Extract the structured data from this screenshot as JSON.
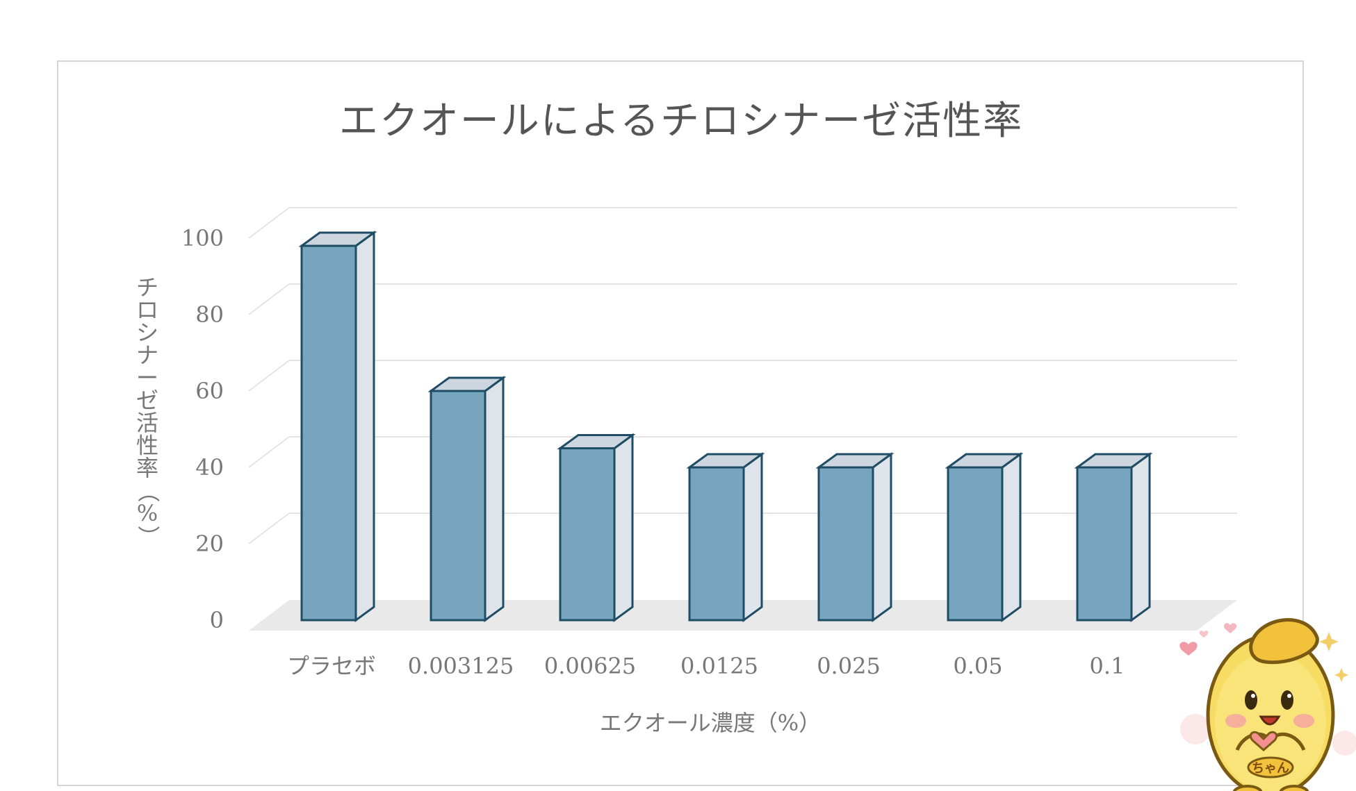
{
  "chart_data": {
    "type": "bar",
    "style": "3d-column",
    "title": "エクオールによるチロシナーゼ活性率",
    "xlabel": "エクオール濃度（%）",
    "ylabel": "チロシナーゼ活性率（%）",
    "categories": [
      "プラセボ",
      "0.003125",
      "0.00625",
      "0.0125",
      "0.025",
      "0.05",
      "0.1"
    ],
    "values": [
      98,
      60,
      45,
      40,
      40,
      40,
      40
    ],
    "ylim": [
      0,
      100
    ],
    "yticks": [
      "0",
      "20",
      "40",
      "60",
      "80",
      "100"
    ],
    "grid": true,
    "legend": "none",
    "colors": {
      "bar_fill": "#76a5bd",
      "bar_edge": "#1f4d66",
      "bar_side": "#dfe4eb",
      "floor": "#e9e9e9",
      "gridline": "#e4e4e4",
      "text": "#777777"
    }
  },
  "mascot": {
    "icon": "egg-mascot-icon",
    "badge_text": "ちゃん"
  }
}
